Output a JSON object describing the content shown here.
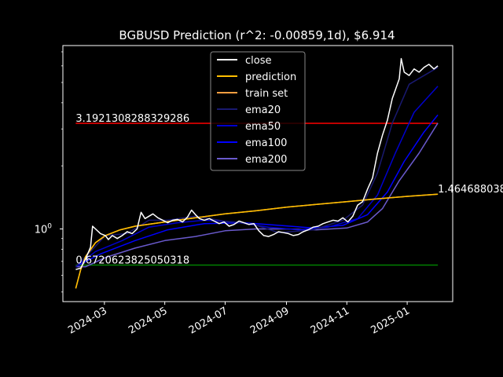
{
  "chart_data": {
    "type": "line",
    "title": "BGBUSD Prediction (r^2: -0.00859,1d), $6.914",
    "xlabel": "",
    "ylabel": "",
    "y_scale": "log",
    "ylim": [
      0.45,
      7.5
    ],
    "xlim": [
      "2024-01-19",
      "2025-02-16"
    ],
    "x_ticks": [
      "2024-03",
      "2024-05",
      "2024-07",
      "2024-09",
      "2024-11",
      "2025-01"
    ],
    "y_ticks": [
      {
        "value": 1.0,
        "label": "10^0"
      }
    ],
    "legend_position": "top-center",
    "annotations": [
      {
        "text": "3.1921308288329286",
        "x": "2024-02-01",
        "y": 3.192
      },
      {
        "text": "0.6720623825050318",
        "x": "2024-02-01",
        "y": 0.672
      },
      {
        "text": "1.464688038",
        "x": "2025-02-01",
        "y": 1.465
      }
    ],
    "hlines": [
      {
        "y": 3.192,
        "from": "2024-02-01",
        "to": "2025-02-01",
        "color": "#ff0000"
      },
      {
        "y": 0.672,
        "from": "2024-02-01",
        "to": "2025-02-01",
        "color": "#008000"
      }
    ],
    "series": [
      {
        "name": "close",
        "color": "#ffffff",
        "points": [
          [
            "2024-02-01",
            0.64
          ],
          [
            "2024-02-06",
            0.65
          ],
          [
            "2024-02-11",
            0.72
          ],
          [
            "2024-02-16",
            0.82
          ],
          [
            "2024-02-18",
            1.03
          ],
          [
            "2024-02-21",
            1.0
          ],
          [
            "2024-02-26",
            0.95
          ],
          [
            "2024-03-02",
            0.93
          ],
          [
            "2024-03-05",
            0.89
          ],
          [
            "2024-03-09",
            0.93
          ],
          [
            "2024-03-14",
            0.9
          ],
          [
            "2024-03-19",
            0.93
          ],
          [
            "2024-03-24",
            0.97
          ],
          [
            "2024-03-29",
            0.95
          ],
          [
            "2024-04-03",
            1.0
          ],
          [
            "2024-04-07",
            1.2
          ],
          [
            "2024-04-11",
            1.12
          ],
          [
            "2024-04-15",
            1.15
          ],
          [
            "2024-04-19",
            1.18
          ],
          [
            "2024-04-24",
            1.13
          ],
          [
            "2024-04-29",
            1.1
          ],
          [
            "2024-05-04",
            1.07
          ],
          [
            "2024-05-09",
            1.1
          ],
          [
            "2024-05-14",
            1.11
          ],
          [
            "2024-05-19",
            1.08
          ],
          [
            "2024-05-24",
            1.14
          ],
          [
            "2024-05-28",
            1.23
          ],
          [
            "2024-06-01",
            1.17
          ],
          [
            "2024-06-05",
            1.12
          ],
          [
            "2024-06-10",
            1.1
          ],
          [
            "2024-06-15",
            1.12
          ],
          [
            "2024-06-20",
            1.09
          ],
          [
            "2024-06-25",
            1.06
          ],
          [
            "2024-06-30",
            1.08
          ],
          [
            "2024-07-05",
            1.03
          ],
          [
            "2024-07-10",
            1.05
          ],
          [
            "2024-07-15",
            1.09
          ],
          [
            "2024-07-20",
            1.07
          ],
          [
            "2024-07-25",
            1.05
          ],
          [
            "2024-07-30",
            1.06
          ],
          [
            "2024-08-04",
            0.98
          ],
          [
            "2024-08-09",
            0.93
          ],
          [
            "2024-08-14",
            0.92
          ],
          [
            "2024-08-19",
            0.94
          ],
          [
            "2024-08-24",
            0.97
          ],
          [
            "2024-08-29",
            0.96
          ],
          [
            "2024-09-03",
            0.95
          ],
          [
            "2024-09-08",
            0.93
          ],
          [
            "2024-09-13",
            0.94
          ],
          [
            "2024-09-18",
            0.97
          ],
          [
            "2024-09-23",
            0.99
          ],
          [
            "2024-09-28",
            1.02
          ],
          [
            "2024-10-03",
            1.03
          ],
          [
            "2024-10-08",
            1.06
          ],
          [
            "2024-10-13",
            1.08
          ],
          [
            "2024-10-18",
            1.1
          ],
          [
            "2024-10-23",
            1.09
          ],
          [
            "2024-10-28",
            1.13
          ],
          [
            "2024-11-02",
            1.08
          ],
          [
            "2024-11-07",
            1.15
          ],
          [
            "2024-11-12",
            1.3
          ],
          [
            "2024-11-17",
            1.35
          ],
          [
            "2024-11-22",
            1.55
          ],
          [
            "2024-11-27",
            1.75
          ],
          [
            "2024-12-02",
            2.3
          ],
          [
            "2024-12-07",
            2.8
          ],
          [
            "2024-12-12",
            3.3
          ],
          [
            "2024-12-17",
            4.2
          ],
          [
            "2024-12-20",
            4.6
          ],
          [
            "2024-12-24",
            5.2
          ],
          [
            "2024-12-26",
            6.5
          ],
          [
            "2024-12-29",
            5.6
          ],
          [
            "2025-01-03",
            5.4
          ],
          [
            "2025-01-08",
            5.8
          ],
          [
            "2025-01-13",
            5.6
          ],
          [
            "2025-01-18",
            5.9
          ],
          [
            "2025-01-23",
            6.1
          ],
          [
            "2025-01-28",
            5.8
          ],
          [
            "2025-02-01",
            6.0
          ]
        ]
      },
      {
        "name": "prediction",
        "color": "#ffbf00",
        "points": [
          [
            "2024-02-01",
            0.52
          ],
          [
            "2024-02-06",
            0.64
          ],
          [
            "2024-02-11",
            0.74
          ],
          [
            "2024-02-21",
            0.86
          ],
          [
            "2024-03-02",
            0.93
          ],
          [
            "2024-03-17",
            0.99
          ],
          [
            "2024-04-01",
            1.03
          ],
          [
            "2024-05-01",
            1.08
          ],
          [
            "2024-06-01",
            1.13
          ],
          [
            "2024-07-01",
            1.18
          ],
          [
            "2024-08-01",
            1.22
          ],
          [
            "2024-09-01",
            1.27
          ],
          [
            "2024-10-01",
            1.31
          ],
          [
            "2024-11-01",
            1.35
          ],
          [
            "2024-12-01",
            1.39
          ],
          [
            "2025-01-01",
            1.43
          ],
          [
            "2025-02-01",
            1.465
          ]
        ]
      },
      {
        "name": "train set",
        "color": "#ff9f40",
        "points": [
          [
            "2024-02-01",
            0.52
          ],
          [
            "2024-02-06",
            0.64
          ],
          [
            "2024-02-11",
            0.74
          ],
          [
            "2024-02-21",
            0.86
          ],
          [
            "2024-03-02",
            0.93
          ],
          [
            "2024-03-17",
            0.99
          ],
          [
            "2024-04-01",
            1.03
          ],
          [
            "2024-05-01",
            1.08
          ],
          [
            "2024-06-01",
            1.13
          ],
          [
            "2024-07-01",
            1.18
          ],
          [
            "2024-08-01",
            1.22
          ],
          [
            "2024-09-01",
            1.27
          ],
          [
            "2024-10-01",
            1.31
          ],
          [
            "2024-11-01",
            1.35
          ],
          [
            "2024-12-01",
            1.39
          ],
          [
            "2025-01-01",
            1.43
          ],
          [
            "2025-02-01",
            1.465
          ]
        ]
      },
      {
        "name": "ema20",
        "color": "#191970",
        "points": [
          [
            "2024-02-01",
            0.66
          ],
          [
            "2024-02-16",
            0.78
          ],
          [
            "2024-03-02",
            0.93
          ],
          [
            "2024-03-24",
            0.95
          ],
          [
            "2024-04-15",
            1.1
          ],
          [
            "2024-05-04",
            1.1
          ],
          [
            "2024-06-01",
            1.15
          ],
          [
            "2024-06-30",
            1.09
          ],
          [
            "2024-07-30",
            1.05
          ],
          [
            "2024-08-24",
            0.96
          ],
          [
            "2024-09-28",
            0.99
          ],
          [
            "2024-10-28",
            1.1
          ],
          [
            "2024-11-17",
            1.3
          ],
          [
            "2024-12-02",
            1.85
          ],
          [
            "2024-12-17",
            3.2
          ],
          [
            "2025-01-03",
            4.9
          ],
          [
            "2025-02-01",
            5.9
          ]
        ]
      },
      {
        "name": "ema50",
        "color": "#0000cd",
        "points": [
          [
            "2024-02-01",
            0.66
          ],
          [
            "2024-02-21",
            0.78
          ],
          [
            "2024-03-19",
            0.88
          ],
          [
            "2024-04-15",
            1.02
          ],
          [
            "2024-05-14",
            1.07
          ],
          [
            "2024-06-10",
            1.1
          ],
          [
            "2024-07-10",
            1.08
          ],
          [
            "2024-08-14",
            1.02
          ],
          [
            "2024-09-13",
            0.99
          ],
          [
            "2024-10-13",
            1.02
          ],
          [
            "2024-11-12",
            1.12
          ],
          [
            "2024-12-02",
            1.45
          ],
          [
            "2024-12-20",
            2.3
          ],
          [
            "2025-01-08",
            3.6
          ],
          [
            "2025-02-01",
            4.8
          ]
        ]
      },
      {
        "name": "ema100",
        "color": "#0000ff",
        "points": [
          [
            "2024-02-01",
            0.66
          ],
          [
            "2024-02-26",
            0.76
          ],
          [
            "2024-04-01",
            0.88
          ],
          [
            "2024-05-04",
            0.99
          ],
          [
            "2024-06-10",
            1.06
          ],
          [
            "2024-07-20",
            1.07
          ],
          [
            "2024-08-24",
            1.04
          ],
          [
            "2024-09-28",
            1.01
          ],
          [
            "2024-10-28",
            1.04
          ],
          [
            "2024-11-22",
            1.17
          ],
          [
            "2024-12-12",
            1.5
          ],
          [
            "2024-12-29",
            2.1
          ],
          [
            "2025-01-18",
            2.9
          ],
          [
            "2025-02-01",
            3.5
          ]
        ]
      },
      {
        "name": "ema200",
        "color": "#6a5acd",
        "points": [
          [
            "2024-02-01",
            0.66
          ],
          [
            "2024-02-11",
            0.66
          ],
          [
            "2024-03-02",
            0.73
          ],
          [
            "2024-04-01",
            0.81
          ],
          [
            "2024-05-01",
            0.88
          ],
          [
            "2024-06-01",
            0.92
          ],
          [
            "2024-07-01",
            0.98
          ],
          [
            "2024-08-01",
            1.0
          ],
          [
            "2024-09-01",
            1.0
          ],
          [
            "2024-10-01",
            0.99
          ],
          [
            "2024-11-01",
            1.01
          ],
          [
            "2024-11-22",
            1.08
          ],
          [
            "2024-12-07",
            1.25
          ],
          [
            "2024-12-24",
            1.7
          ],
          [
            "2025-01-13",
            2.3
          ],
          [
            "2025-02-01",
            3.2
          ]
        ]
      }
    ]
  }
}
